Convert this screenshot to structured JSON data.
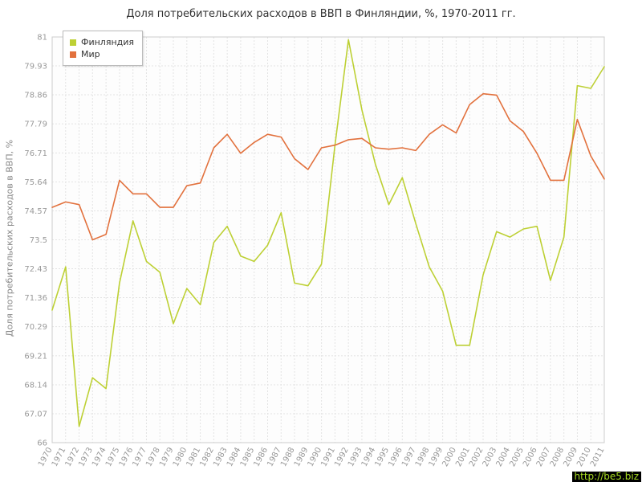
{
  "title": "Доля потребительских расходов в ВВП в Финляндии, %, 1970-2011 гг.",
  "y_axis_title": "Доля потребительских расходов в ВВП, %",
  "watermark": "http://be5.biz",
  "colors": {
    "finland_line": "#bdd034",
    "world_line": "#e2713d",
    "grid": "#e3e3e3",
    "plot_border": "#cccccc",
    "plot_bg": "#fdfdfd",
    "axis_text": "#999999",
    "watermark_bg": "#000000",
    "watermark_text": "#aadd22"
  },
  "legend": [
    {
      "label": "Финляндия",
      "color": "#bdd034"
    },
    {
      "label": "Мир",
      "color": "#e2713d"
    }
  ],
  "chart_data": {
    "type": "line",
    "x": [
      1970,
      1971,
      1972,
      1973,
      1974,
      1975,
      1976,
      1977,
      1978,
      1979,
      1980,
      1981,
      1982,
      1983,
      1984,
      1985,
      1986,
      1987,
      1988,
      1989,
      1990,
      1991,
      1992,
      1993,
      1994,
      1995,
      1996,
      1997,
      1998,
      1999,
      2000,
      2001,
      2002,
      2003,
      2004,
      2005,
      2006,
      2007,
      2008,
      2009,
      2010,
      2011
    ],
    "series": [
      {
        "name": "Финляндия",
        "values": [
          70.9,
          72.5,
          66.6,
          68.4,
          68.0,
          71.9,
          74.2,
          72.7,
          72.3,
          70.4,
          71.7,
          71.1,
          73.4,
          74.0,
          72.9,
          72.7,
          73.3,
          74.5,
          71.9,
          71.8,
          72.6,
          77.0,
          80.9,
          78.3,
          76.3,
          74.8,
          75.8,
          74.1,
          72.5,
          71.6,
          69.6,
          69.6,
          72.2,
          73.8,
          73.6,
          73.9,
          74.0,
          72.0,
          73.6,
          79.2,
          79.1,
          79.9
        ]
      },
      {
        "name": "Мир",
        "values": [
          74.7,
          74.9,
          74.8,
          73.5,
          73.7,
          75.7,
          75.2,
          75.2,
          74.7,
          74.7,
          75.5,
          75.6,
          76.9,
          77.4,
          76.7,
          77.1,
          77.4,
          77.3,
          76.5,
          76.1,
          76.9,
          77.0,
          77.2,
          77.25,
          76.9,
          76.85,
          76.9,
          76.8,
          77.4,
          77.75,
          77.45,
          78.5,
          78.9,
          78.85,
          77.9,
          77.5,
          76.7,
          75.7,
          75.7,
          77.95,
          76.6,
          75.75
        ]
      }
    ],
    "ylim": [
      66,
      81
    ],
    "ytick_labels": [
      "66",
      "67.07",
      "68.14",
      "69.21",
      "70.29",
      "71.36",
      "72.43",
      "73.5",
      "74.57",
      "75.64",
      "76.71",
      "77.79",
      "78.86",
      "79.93",
      "81"
    ],
    "yticks": [
      66,
      67.07,
      68.14,
      69.21,
      70.29,
      71.36,
      72.43,
      73.5,
      74.57,
      75.64,
      76.71,
      77.79,
      78.86,
      79.93,
      81
    ],
    "grid": true,
    "legend_position": "top-left"
  }
}
